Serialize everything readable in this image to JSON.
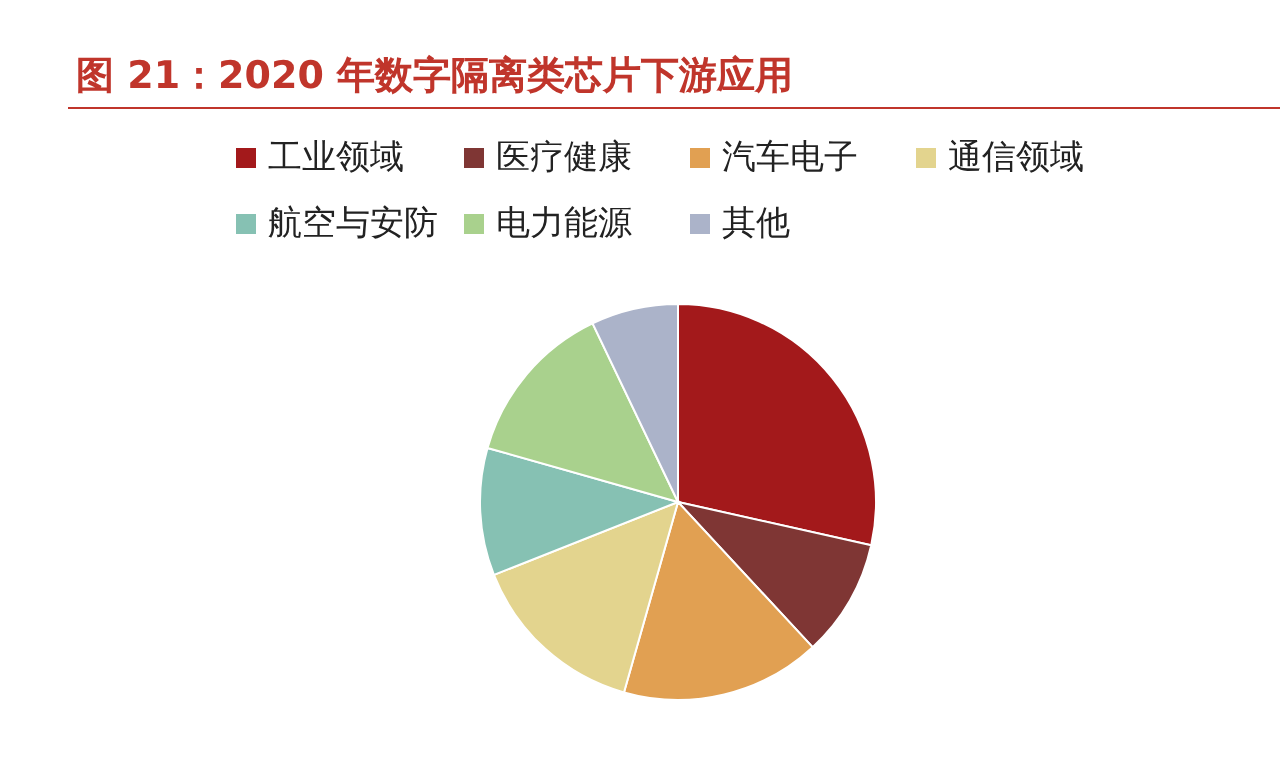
{
  "chart_data": {
    "type": "pie",
    "title": "图 21：2020 年数字隔离类芯片下游应用",
    "categories": [
      "工业领域",
      "医疗健康",
      "汽车电子",
      "通信领域",
      "航空与安防",
      "电力能源",
      "其他"
    ],
    "values": [
      28.5,
      9.6,
      16.3,
      14.6,
      10.4,
      13.5,
      7.1
    ],
    "colors": [
      "#a3191b",
      "#7f3634",
      "#e1a052",
      "#e3d48e",
      "#86c1b3",
      "#a9d18d",
      "#abb3c9"
    ],
    "legend": "top"
  }
}
